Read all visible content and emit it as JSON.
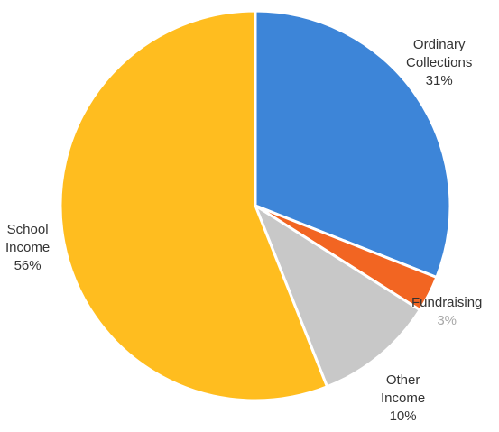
{
  "chart_data": {
    "type": "pie",
    "slices": [
      {
        "label_lines": [
          "Ordinary",
          "Collections"
        ],
        "percent_text": "31%",
        "value": 31,
        "color": "#3d85d8"
      },
      {
        "label_lines": [
          "Fundraising"
        ],
        "percent_text": "3%",
        "value": 3,
        "color": "#f26522"
      },
      {
        "label_lines": [
          "Other",
          "Income"
        ],
        "percent_text": "10%",
        "value": 10,
        "color": "#c8c8c8"
      },
      {
        "label_lines": [
          "School",
          "Income"
        ],
        "percent_text": "56%",
        "value": 56,
        "color": "#ffbd1f"
      }
    ]
  }
}
